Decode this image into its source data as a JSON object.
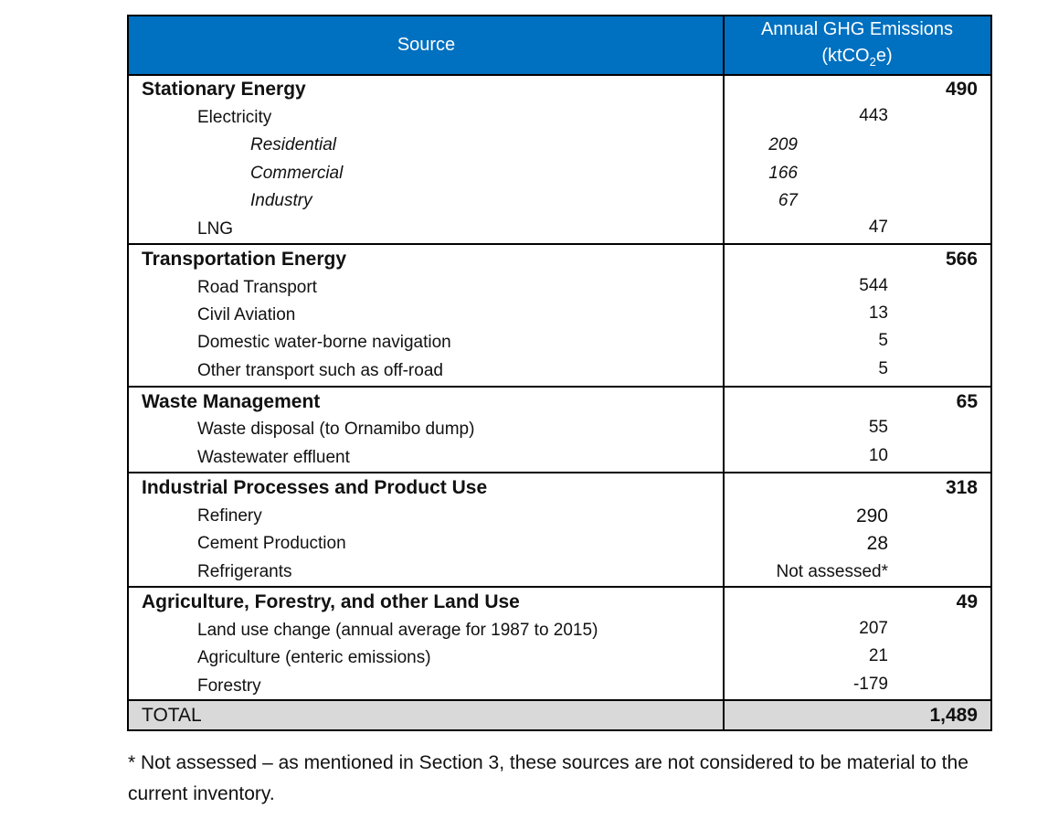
{
  "table": {
    "header": {
      "source": "Source",
      "emissions_line1": "Annual GHG Emissions",
      "emissions_unit_pre": "(ktCO",
      "emissions_unit_sub": "2",
      "emissions_unit_post": "e)"
    },
    "rows": [
      {
        "label": "Stationary Energy",
        "value": "490"
      },
      {
        "label": "Electricity",
        "value": "443"
      },
      {
        "label": "Residential",
        "value": "209"
      },
      {
        "label": "Commercial",
        "value": "166"
      },
      {
        "label": "Industry",
        "value": "67"
      },
      {
        "label": "LNG",
        "value": "47"
      },
      {
        "label": "Transportation Energy",
        "value": "566"
      },
      {
        "label": "Road Transport",
        "value": "544"
      },
      {
        "label": "Civil Aviation",
        "value": "13"
      },
      {
        "label": "Domestic water-borne navigation",
        "value": "5"
      },
      {
        "label": "Other transport such as off-road",
        "value": "5"
      },
      {
        "label": "Waste Management",
        "value": "65"
      },
      {
        "label": "Waste disposal (to Ornamibo dump)",
        "value": "55"
      },
      {
        "label": "Wastewater effluent",
        "value": "10"
      },
      {
        "label": "Industrial Processes and Product Use",
        "value": "318"
      },
      {
        "label": "Refinery",
        "value": "290"
      },
      {
        "label": "Cement Production",
        "value": "28"
      },
      {
        "label": "Refrigerants",
        "value": "Not assessed*"
      },
      {
        "label": "Agriculture, Forestry, and other Land Use",
        "value": "49"
      },
      {
        "label": "Land use change (annual average for 1987 to 2015)",
        "value": "207"
      },
      {
        "label": "Agriculture (enteric emissions)",
        "value": "21"
      },
      {
        "label": "Forestry",
        "value": "-179"
      }
    ],
    "total": {
      "label": "TOTAL",
      "value": "1,489"
    }
  },
  "footnote": "* Not assessed – as mentioned in Section 3, these sources are not considered to be material to the current inventory.",
  "colors": {
    "header_bg": "#0070c0",
    "total_bg": "#d9d9d9",
    "border": "#000000"
  }
}
